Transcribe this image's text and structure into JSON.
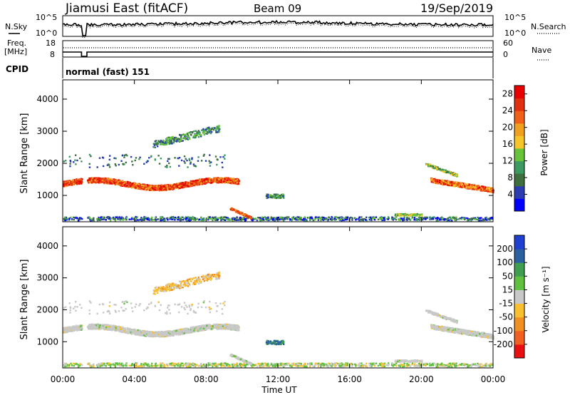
{
  "header": {
    "station": "Jiamusi East (fitACF)",
    "beam": "Beam 09",
    "date": "19/Sep/2019"
  },
  "top_panel": {
    "left_label": "N.Sky",
    "right_label": "N.Search",
    "left_ticks": [
      "10^5",
      "10^0"
    ],
    "right_ticks": [
      "10^5",
      "10^0"
    ]
  },
  "freq_panel": {
    "left_label_1": "Freq.",
    "left_label_2": "[MHz]",
    "right_label": "Nave",
    "left_ticks": [
      "18",
      "8"
    ],
    "right_ticks": [
      "60",
      "0"
    ]
  },
  "cpid": {
    "label": "CPID",
    "value": "normal (fast) 151"
  },
  "colors": {
    "power": [
      "#0000ff",
      "#2a3cb0",
      "#3f6e3f",
      "#3c9a60",
      "#67c43a",
      "#f6c52a",
      "#f0a020",
      "#f06018",
      "#e03010",
      "#e80000"
    ],
    "velocity": [
      "#e81010",
      "#f06020",
      "#f09020",
      "#f8c030",
      "#c8c8c8",
      "#60c040",
      "#3f9e50",
      "#2a60a0",
      "#2040d0"
    ]
  },
  "chart_data": [
    {
      "type": "heatmap",
      "name": "power",
      "ylabel": "Slant Range [km]",
      "ylim": [
        180,
        4600
      ],
      "xlim_hours": [
        0,
        24
      ],
      "yticks": [
        "1000",
        "2000",
        "3000",
        "4000"
      ],
      "colorbar_label": "Power [dB]",
      "colorbar_ticks": [
        "4",
        "8",
        "12",
        "16",
        "20",
        "24",
        "28"
      ],
      "colorbar_range": [
        0,
        30
      ]
    },
    {
      "type": "heatmap",
      "name": "velocity",
      "ylabel": "Slant Range [km]",
      "ylim": [
        180,
        4600
      ],
      "xlim_hours": [
        0,
        24
      ],
      "yticks": [
        "1000",
        "2000",
        "3000",
        "4000"
      ],
      "xticks": [
        "00:00",
        "04:00",
        "08:00",
        "12:00",
        "16:00",
        "20:00",
        "00:00"
      ],
      "xlabel": "Time UT",
      "colorbar_label": "Velocity [m s⁻¹]",
      "colorbar_ticks": [
        "-200",
        "-100",
        "-50",
        "-15",
        "15",
        "50",
        "100",
        "200"
      ]
    }
  ]
}
